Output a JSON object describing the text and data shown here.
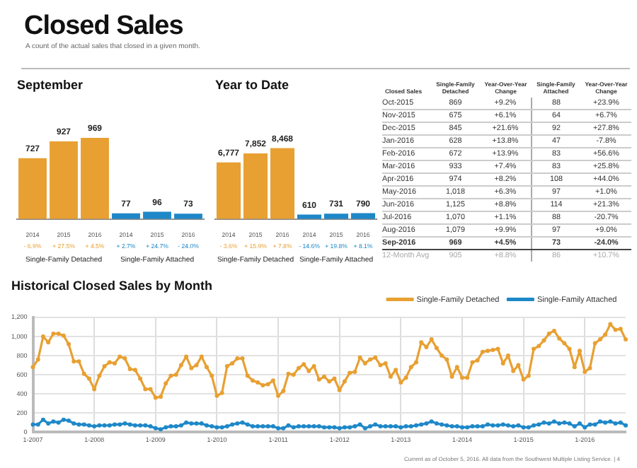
{
  "chart_data": [
    {
      "type": "other",
      "title": "Closed Sales",
      "subtitle": "A count of the actual sales that closed in a given month.",
      "annotations": [
        "Current as of October 5, 2016. All data from the Southwest Multiple Listing Service. | 4"
      ]
    },
    {
      "type": "bar",
      "title": "September",
      "categories": [
        "2014",
        "2015",
        "2016",
        "2014",
        "2015",
        "2016"
      ],
      "values": [
        727,
        927,
        969,
        77,
        96,
        73
      ],
      "colors": [
        "#e8a032",
        "#e8a032",
        "#e8a032",
        "#1e88c8",
        "#1e88c8",
        "#1e88c8"
      ],
      "value_labels": [
        "727",
        "927",
        "969",
        "77",
        "96",
        "73"
      ],
      "annotations": [
        "- 6.9%",
        "+ 27.5%",
        "+ 4.5%",
        "+ 2.7%",
        "+ 24.7%",
        "- 24.0%",
        "Single-Family Detached",
        "Single-Family Attached"
      ]
    },
    {
      "type": "bar",
      "title": "Year to Date",
      "categories": [
        "2014",
        "2015",
        "2016",
        "2014",
        "2015",
        "2016"
      ],
      "values": [
        6777,
        7852,
        8468,
        610,
        731,
        790
      ],
      "colors": [
        "#e8a032",
        "#e8a032",
        "#e8a032",
        "#1e88c8",
        "#1e88c8",
        "#1e88c8"
      ],
      "value_labels": [
        "6,777",
        "7,852",
        "8,468",
        "610",
        "731",
        "790"
      ],
      "annotations": [
        "- 3.6%",
        "+ 15.9%",
        "+ 7.8%",
        "- 14.6%",
        "+ 19.8%",
        "+ 8.1%",
        "Single-Family Detached",
        "Single-Family Attached"
      ]
    },
    {
      "type": "other",
      "ylabel": "Closed Sales",
      "categories": [
        "Oct-2015",
        "Nov-2015",
        "Dec-2015",
        "Jan-2016",
        "Feb-2016",
        "Mar-2016",
        "Apr-2016",
        "May-2016",
        "Jun-2016",
        "Jul-2016",
        "Aug-2016",
        "Sep-2016",
        "12-Month Avg"
      ],
      "series": [
        {
          "name": "Single-Family Detached",
          "values": [
            869,
            675,
            845,
            628,
            672,
            933,
            974,
            1018,
            1125,
            1070,
            1079,
            969,
            905
          ],
          "value_labels": [
            "869",
            "675",
            "845",
            "628",
            "672",
            "933",
            "974",
            "1,018",
            "1,125",
            "1,070",
            "1,079",
            "969",
            "905"
          ]
        },
        {
          "name": "Year-Over-Year Change",
          "values": [
            9.2,
            6.1,
            21.6,
            13.8,
            13.9,
            7.4,
            8.2,
            6.3,
            8.8,
            1.1,
            9.9,
            4.5,
            8.8
          ],
          "value_labels": [
            "+9.2%",
            "+6.1%",
            "+21.6%",
            "+13.8%",
            "+13.9%",
            "+7.4%",
            "+8.2%",
            "+6.3%",
            "+8.8%",
            "+1.1%",
            "+9.9%",
            "+4.5%",
            "+8.8%"
          ]
        },
        {
          "name": "Single-Family Attached",
          "values": [
            88,
            64,
            92,
            47,
            83,
            83,
            108,
            97,
            114,
            88,
            97,
            73,
            86
          ],
          "value_labels": [
            "88",
            "64",
            "92",
            "47",
            "83",
            "83",
            "108",
            "97",
            "114",
            "88",
            "97",
            "73",
            "86"
          ]
        },
        {
          "name": "Year-Over-Year Change",
          "values": [
            23.9,
            6.7,
            27.8,
            -7.8,
            56.6,
            25.8,
            44.0,
            1.0,
            21.3,
            -20.7,
            9.0,
            -24.0,
            10.7
          ],
          "value_labels": [
            "+23.9%",
            "+6.7%",
            "+27.8%",
            "-7.8%",
            "+56.6%",
            "+25.8%",
            "+44.0%",
            "+1.0%",
            "+21.3%",
            "-20.7%",
            "+9.0%",
            "-24.0%",
            "+10.7%"
          ]
        }
      ]
    },
    {
      "type": "line",
      "title": "Historical Closed Sales by Month",
      "grid": true,
      "legend": "top right",
      "marker": "circle",
      "ylim": [
        0,
        1200
      ],
      "yticks": [
        0,
        200,
        400,
        600,
        800,
        {
          "value": 1000,
          "label": "1,000"
        },
        {
          "value": 1200,
          "label": "1,200"
        }
      ],
      "categories": [
        "1-2007",
        null,
        null,
        null,
        null,
        null,
        null,
        null,
        null,
        null,
        null,
        null,
        "1-2008",
        null,
        null,
        null,
        null,
        null,
        null,
        null,
        null,
        null,
        null,
        null,
        "1-2009",
        null,
        null,
        null,
        null,
        null,
        null,
        null,
        null,
        null,
        null,
        null,
        "1-2010",
        null,
        null,
        null,
        null,
        null,
        null,
        null,
        null,
        null,
        null,
        null,
        "1-2011",
        null,
        null,
        null,
        null,
        null,
        null,
        null,
        null,
        null,
        null,
        null,
        "1-2012",
        null,
        null,
        null,
        null,
        null,
        null,
        null,
        null,
        null,
        null,
        null,
        "1-2013",
        null,
        null,
        null,
        null,
        null,
        null,
        null,
        null,
        null,
        null,
        null,
        "1-2014",
        null,
        null,
        null,
        null,
        null,
        null,
        null,
        null,
        null,
        null,
        null,
        "1-2015",
        null,
        null,
        null,
        null,
        null,
        null,
        null,
        null,
        null,
        null,
        null,
        "1-2016",
        null,
        null,
        null,
        null,
        null,
        null,
        null,
        null
      ],
      "series": [
        {
          "name": "Single-Family Detached",
          "color": "#e8a032",
          "values": [
            680,
            760,
            1000,
            940,
            1030,
            1030,
            1010,
            920,
            740,
            740,
            610,
            560,
            450,
            590,
            690,
            730,
            720,
            790,
            770,
            660,
            650,
            560,
            450,
            450,
            360,
            370,
            510,
            590,
            600,
            700,
            790,
            670,
            700,
            790,
            680,
            590,
            380,
            410,
            690,
            720,
            770,
            770,
            590,
            540,
            520,
            490,
            500,
            540,
            380,
            430,
            610,
            600,
            670,
            710,
            640,
            690,
            550,
            580,
            530,
            560,
            440,
            530,
            620,
            630,
            780,
            720,
            760,
            780,
            700,
            720,
            580,
            650,
            520,
            570,
            680,
            730,
            940,
            890,
            970,
            880,
            800,
            760,
            580,
            680,
            570,
            570,
            730,
            750,
            840,
            850,
            860,
            870,
            720,
            800,
            640,
            700,
            550,
            590,
            870,
            900,
            960,
            1030,
            1060,
            980,
            930,
            870,
            680,
            850,
            630,
            670,
            930,
            970,
            1020,
            1130,
            1070,
            1080,
            970
          ]
        },
        {
          "name": "Single-Family Attached",
          "color": "#1e88c8",
          "values": [
            80,
            80,
            130,
            90,
            110,
            100,
            130,
            120,
            90,
            80,
            80,
            70,
            60,
            70,
            70,
            70,
            80,
            80,
            90,
            80,
            70,
            70,
            70,
            60,
            40,
            30,
            50,
            60,
            60,
            70,
            100,
            90,
            90,
            90,
            70,
            60,
            50,
            50,
            60,
            80,
            90,
            100,
            80,
            60,
            60,
            60,
            60,
            60,
            40,
            40,
            70,
            50,
            60,
            60,
            60,
            60,
            60,
            50,
            50,
            50,
            40,
            50,
            50,
            60,
            80,
            40,
            60,
            80,
            60,
            60,
            60,
            60,
            50,
            60,
            60,
            70,
            80,
            90,
            110,
            90,
            80,
            70,
            60,
            60,
            50,
            50,
            60,
            60,
            60,
            80,
            70,
            70,
            80,
            70,
            60,
            70,
            50,
            50,
            70,
            80,
            100,
            90,
            110,
            90,
            100,
            90,
            60,
            90,
            50,
            80,
            80,
            110,
            100,
            110,
            90,
            100,
            70
          ]
        }
      ]
    }
  ]
}
